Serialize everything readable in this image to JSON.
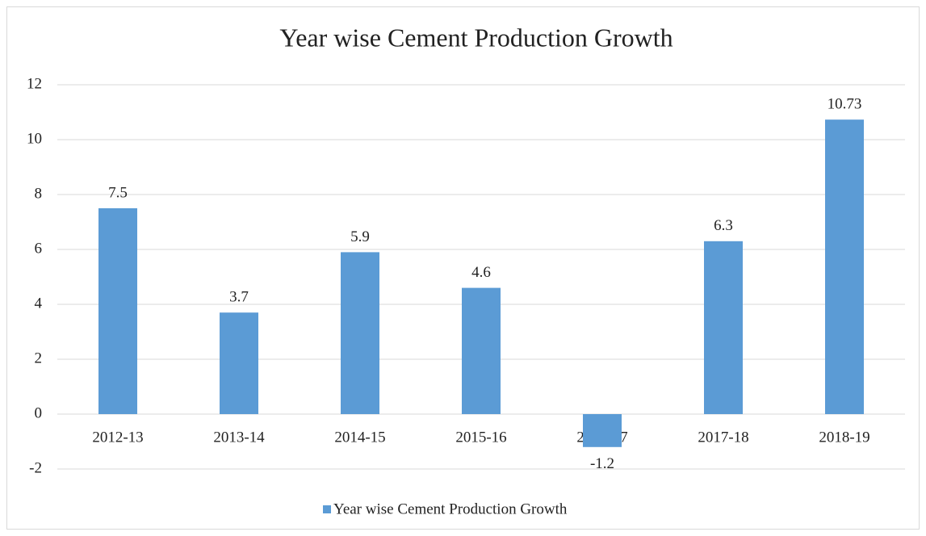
{
  "chart_data": {
    "type": "bar",
    "title": "Year wise Cement Production Growth",
    "categories": [
      "2012-13",
      "2013-14",
      "2014-15",
      "2015-16",
      "2016-17",
      "2017-18",
      "2018-19"
    ],
    "series": [
      {
        "name": "Year wise Cement Production Growth",
        "color": "#5b9bd5",
        "values": [
          7.5,
          3.7,
          5.9,
          4.6,
          -1.2,
          6.3,
          10.73
        ]
      }
    ],
    "ylim": [
      -2,
      12
    ],
    "yticks": [
      -2,
      0,
      2,
      4,
      6,
      8,
      10,
      12
    ],
    "grid": true,
    "legend": "bottom"
  }
}
